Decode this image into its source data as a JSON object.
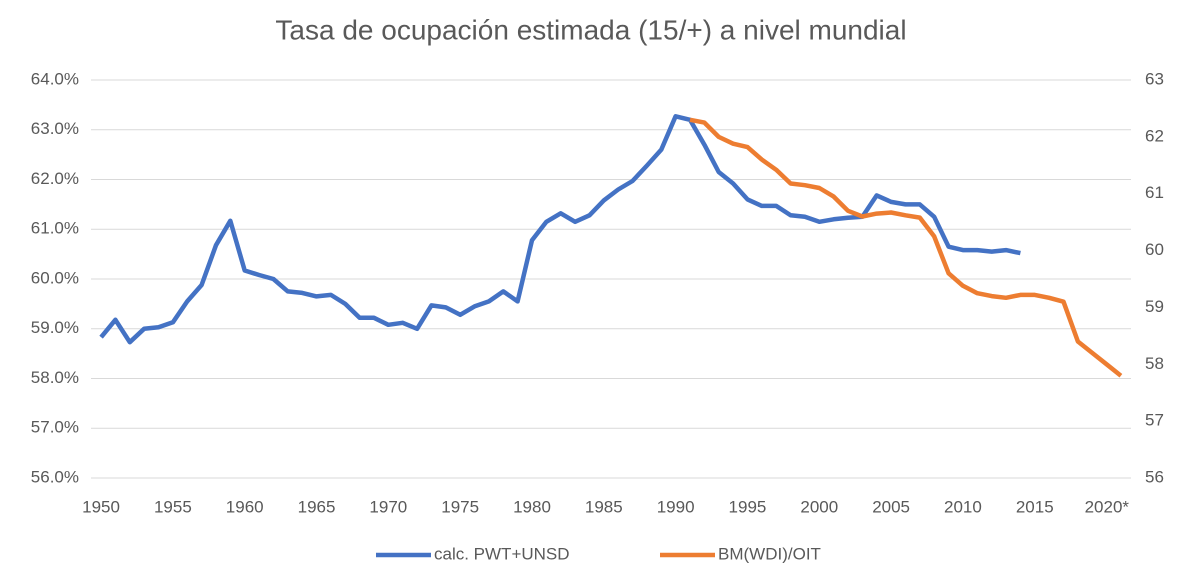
{
  "chart_data": {
    "type": "line",
    "title": "Tasa de ocupación estimada (15/+) a nivel mundial",
    "x": [
      1950,
      1951,
      1952,
      1953,
      1954,
      1955,
      1956,
      1957,
      1958,
      1959,
      1960,
      1961,
      1962,
      1963,
      1964,
      1965,
      1966,
      1967,
      1968,
      1969,
      1970,
      1971,
      1972,
      1973,
      1974,
      1975,
      1976,
      1977,
      1978,
      1979,
      1980,
      1981,
      1982,
      1983,
      1984,
      1985,
      1986,
      1987,
      1988,
      1989,
      1990,
      1991,
      1992,
      1993,
      1994,
      1995,
      1996,
      1997,
      1998,
      1999,
      2000,
      2001,
      2002,
      2003,
      2004,
      2005,
      2006,
      2007,
      2008,
      2009,
      2010,
      2011,
      2012,
      2013,
      2014,
      2015,
      2016,
      2017,
      2018,
      2019,
      2020,
      2021
    ],
    "series": [
      {
        "name": "calc. PWT+UNSD",
        "color": "#4472c4",
        "axis": "y",
        "values": [
          58.83,
          59.18,
          58.73,
          59.0,
          59.03,
          59.13,
          59.55,
          59.88,
          60.68,
          61.17,
          60.17,
          60.08,
          60.0,
          59.75,
          59.72,
          59.65,
          59.68,
          59.5,
          59.22,
          59.22,
          59.08,
          59.12,
          59.0,
          59.47,
          59.43,
          59.28,
          59.45,
          59.55,
          59.75,
          59.55,
          60.78,
          61.15,
          61.32,
          61.15,
          61.28,
          61.58,
          61.8,
          61.97,
          62.28,
          62.6,
          63.27,
          63.2,
          62.7,
          62.15,
          61.92,
          61.6,
          61.47,
          61.47,
          61.28,
          61.25,
          61.15,
          61.2,
          61.23,
          61.25,
          61.68,
          61.55,
          61.5,
          61.5,
          61.25,
          60.65,
          60.58,
          60.58,
          60.55,
          60.58,
          60.52,
          null,
          null,
          null,
          null,
          null,
          null,
          null
        ]
      },
      {
        "name": "BM(WDI)/OIT",
        "color": "#ed7d31",
        "axis": "y2",
        "values": [
          null,
          null,
          null,
          null,
          null,
          null,
          null,
          null,
          null,
          null,
          null,
          null,
          null,
          null,
          null,
          null,
          null,
          null,
          null,
          null,
          null,
          null,
          null,
          null,
          null,
          null,
          null,
          null,
          null,
          null,
          null,
          null,
          null,
          null,
          null,
          null,
          null,
          null,
          null,
          null,
          null,
          62.3,
          62.25,
          62.0,
          61.88,
          61.82,
          61.6,
          61.42,
          61.18,
          61.15,
          61.1,
          60.95,
          60.7,
          60.6,
          60.65,
          60.67,
          60.62,
          60.58,
          60.25,
          59.6,
          59.38,
          59.25,
          59.2,
          59.17,
          59.22,
          59.22,
          59.17,
          59.1,
          58.4,
          58.2,
          58.0,
          57.8
        ]
      }
    ],
    "xlim": [
      1949.3,
      2021.7
    ],
    "xticks": [
      1950,
      1955,
      1960,
      1965,
      1970,
      1975,
      1980,
      1985,
      1990,
      1995,
      2000,
      2005,
      2010,
      2015,
      {
        "value": 2020,
        "label": "2020*"
      }
    ],
    "ylim": [
      56,
      64
    ],
    "yticks": [
      {
        "value": 56,
        "label": "56.0%"
      },
      {
        "value": 57,
        "label": "57.0%"
      },
      {
        "value": 58,
        "label": "58.0%"
      },
      {
        "value": 59,
        "label": "59.0%"
      },
      {
        "value": 60,
        "label": "60.0%"
      },
      {
        "value": 61,
        "label": "61.0%"
      },
      {
        "value": 62,
        "label": "62.0%"
      },
      {
        "value": 63,
        "label": "63.0%"
      },
      {
        "value": 64,
        "label": "64.0%"
      }
    ],
    "y2lim": [
      56,
      63
    ],
    "y2ticks": [
      56,
      57,
      58,
      59,
      60,
      61,
      62,
      63
    ],
    "grid": true,
    "legend": "bottom"
  }
}
